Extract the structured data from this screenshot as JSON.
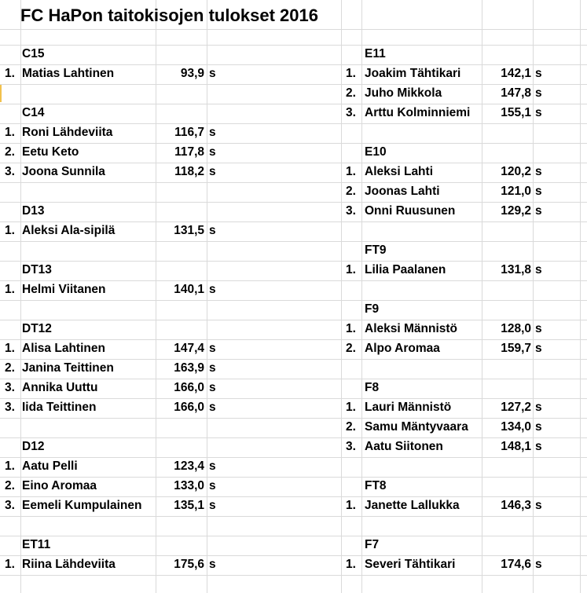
{
  "title": "FC HaPon taitokisojen tulokset 2016",
  "unit": "s",
  "left_column": [
    {
      "category": "C15",
      "entries": [
        {
          "rank": "1.",
          "name": "Matias Lahtinen",
          "time": "93,9"
        }
      ]
    },
    {
      "category": "C14",
      "entries": [
        {
          "rank": "1.",
          "name": "Roni Lähdeviita",
          "time": "116,7"
        },
        {
          "rank": "2.",
          "name": "Eetu Keto",
          "time": "117,8"
        },
        {
          "rank": "3.",
          "name": "Joona Sunnila",
          "time": "118,2"
        }
      ]
    },
    {
      "category": "D13",
      "entries": [
        {
          "rank": "1.",
          "name": "Aleksi Ala-sipilä",
          "time": "131,5"
        }
      ]
    },
    {
      "category": "DT13",
      "entries": [
        {
          "rank": "1.",
          "name": "Helmi Viitanen",
          "time": "140,1"
        }
      ]
    },
    {
      "category": "DT12",
      "entries": [
        {
          "rank": "1.",
          "name": "Alisa Lahtinen",
          "time": "147,4"
        },
        {
          "rank": "2.",
          "name": "Janina Teittinen",
          "time": "163,9"
        },
        {
          "rank": "3.",
          "name": "Annika Uuttu",
          "time": "166,0"
        },
        {
          "rank": "3.",
          "name": "Iida Teittinen",
          "time": "166,0"
        }
      ]
    },
    {
      "category": "D12",
      "entries": [
        {
          "rank": "1.",
          "name": "Aatu Pelli",
          "time": "123,4"
        },
        {
          "rank": "2.",
          "name": "Eino Aromaa",
          "time": "133,0"
        },
        {
          "rank": "3.",
          "name": "Eemeli Kumpulainen",
          "time": "135,1"
        }
      ]
    },
    {
      "category": "ET11",
      "entries": [
        {
          "rank": "1.",
          "name": "Riina Lähdeviita",
          "time": "175,6"
        }
      ]
    }
  ],
  "right_column": [
    {
      "category": "E11",
      "entries": [
        {
          "rank": "1.",
          "name": "Joakim Tähtikari",
          "time": "142,1"
        },
        {
          "rank": "2.",
          "name": "Juho Mikkola",
          "time": "147,8"
        },
        {
          "rank": "3.",
          "name": "Arttu Kolminniemi",
          "time": "155,1"
        }
      ]
    },
    {
      "category": "E10",
      "entries": [
        {
          "rank": "1.",
          "name": "Aleksi Lahti",
          "time": "120,2"
        },
        {
          "rank": "2.",
          "name": "Joonas Lahti",
          "time": "121,0"
        },
        {
          "rank": "3.",
          "name": "Onni Ruusunen",
          "time": "129,2"
        }
      ]
    },
    {
      "category": "FT9",
      "entries": [
        {
          "rank": "1.",
          "name": "Lilia Paalanen",
          "time": "131,8"
        }
      ]
    },
    {
      "category": "F9",
      "entries": [
        {
          "rank": "1.",
          "name": "Aleksi Männistö",
          "time": "128,0"
        },
        {
          "rank": "2.",
          "name": "Alpo Aromaa",
          "time": "159,7"
        }
      ]
    },
    {
      "category": "F8",
      "entries": [
        {
          "rank": "1.",
          "name": "Lauri Männistö",
          "time": "127,2"
        },
        {
          "rank": "2.",
          "name": "Samu Mäntyvaara",
          "time": "134,0"
        },
        {
          "rank": "3.",
          "name": "Aatu Siitonen",
          "time": "148,1"
        }
      ]
    },
    {
      "category": "FT8",
      "entries": [
        {
          "rank": "1.",
          "name": "Janette Lallukka",
          "time": "146,3"
        }
      ]
    },
    {
      "category": "F7",
      "entries": [
        {
          "rank": "1.",
          "name": "Severi Tähtikari",
          "time": "174,6"
        }
      ]
    }
  ]
}
